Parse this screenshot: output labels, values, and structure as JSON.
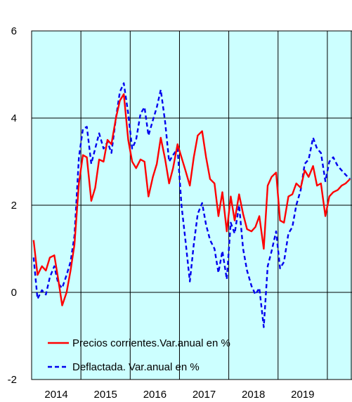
{
  "chart_data": {
    "type": "line",
    "title": "",
    "xlabel": "",
    "ylabel": "",
    "x_range": [
      2013.5,
      2020.0
    ],
    "ylim": [
      -2,
      6
    ],
    "y_ticks": [
      6,
      4,
      2,
      0,
      -2
    ],
    "x_tick_labels": [
      {
        "label": "2014",
        "center": 2014.0
      },
      {
        "label": "2015",
        "center": 2015.0
      },
      {
        "label": "2016",
        "center": 2016.0
      },
      {
        "label": "2017",
        "center": 2017.0
      },
      {
        "label": "2018",
        "center": 2018.0
      },
      {
        "label": "2019",
        "center": 2019.0
      }
    ],
    "year_boundaries": [
      2014.5,
      2015.5,
      2016.5,
      2017.5,
      2018.5,
      2019.5
    ],
    "grid": true,
    "plot_background": "#ccffff",
    "legend": {
      "position": "bottom-left"
    },
    "series": [
      {
        "name": "Precios corrientes.Var.anual en %",
        "color": "#ff0000",
        "dash": "solid",
        "x": [
          2013.54,
          2013.62,
          2013.71,
          2013.79,
          2013.87,
          2013.96,
          2014.04,
          2014.12,
          2014.21,
          2014.29,
          2014.37,
          2014.46,
          2014.54,
          2014.62,
          2014.71,
          2014.79,
          2014.87,
          2014.96,
          2015.04,
          2015.12,
          2015.21,
          2015.29,
          2015.37,
          2015.46,
          2015.54,
          2015.62,
          2015.71,
          2015.79,
          2015.87,
          2015.96,
          2016.04,
          2016.12,
          2016.21,
          2016.29,
          2016.37,
          2016.46,
          2016.54,
          2016.62,
          2016.71,
          2016.79,
          2016.87,
          2016.96,
          2017.04,
          2017.12,
          2017.21,
          2017.29,
          2017.37,
          2017.46,
          2017.54,
          2017.62,
          2017.71,
          2017.79,
          2017.87,
          2017.96,
          2018.04,
          2018.12,
          2018.21,
          2018.29,
          2018.37,
          2018.46,
          2018.54,
          2018.62,
          2018.71,
          2018.79,
          2018.87,
          2018.96,
          2019.04,
          2019.12,
          2019.21,
          2019.29,
          2019.37,
          2019.46,
          2019.54,
          2019.62,
          2019.71,
          2019.79,
          2019.87,
          2019.96
        ],
        "values": [
          1.2,
          0.4,
          0.6,
          0.5,
          0.8,
          0.85,
          0.3,
          -0.3,
          0.0,
          0.5,
          1.1,
          2.5,
          3.15,
          3.1,
          2.1,
          2.4,
          3.05,
          3.0,
          3.5,
          3.4,
          4.0,
          4.4,
          4.55,
          3.5,
          3.0,
          2.85,
          3.05,
          3.0,
          2.2,
          2.65,
          2.95,
          3.55,
          3.05,
          2.5,
          2.85,
          3.4,
          3.1,
          2.8,
          2.45,
          3.1,
          3.6,
          3.7,
          3.1,
          2.6,
          2.5,
          1.75,
          2.3,
          1.4,
          2.2,
          1.65,
          2.25,
          1.8,
          1.45,
          1.4,
          1.5,
          1.75,
          1.0,
          2.45,
          2.65,
          2.75,
          1.65,
          1.6,
          2.2,
          2.25,
          2.5,
          2.4,
          2.8,
          2.65,
          2.9,
          2.45,
          2.5,
          1.75,
          2.2,
          2.3,
          2.35,
          2.45,
          2.5,
          2.6
        ]
      },
      {
        "name": "Deflactada. Var.anual en %",
        "color": "#0000ee",
        "dash": "dashed",
        "x": [
          2013.54,
          2013.62,
          2013.71,
          2013.79,
          2013.87,
          2013.96,
          2014.04,
          2014.12,
          2014.21,
          2014.29,
          2014.37,
          2014.46,
          2014.54,
          2014.62,
          2014.71,
          2014.79,
          2014.87,
          2014.96,
          2015.04,
          2015.12,
          2015.21,
          2015.29,
          2015.37,
          2015.46,
          2015.54,
          2015.62,
          2015.71,
          2015.79,
          2015.87,
          2015.96,
          2016.04,
          2016.12,
          2016.21,
          2016.29,
          2016.37,
          2016.46,
          2016.54,
          2016.62,
          2016.71,
          2016.79,
          2016.87,
          2016.96,
          2017.04,
          2017.12,
          2017.21,
          2017.29,
          2017.37,
          2017.46,
          2017.54,
          2017.62,
          2017.71,
          2017.79,
          2017.87,
          2017.96,
          2018.04,
          2018.12,
          2018.21,
          2018.29,
          2018.37,
          2018.46,
          2018.54,
          2018.62,
          2018.71,
          2018.79,
          2018.87,
          2018.96,
          2019.04,
          2019.12,
          2019.21,
          2019.29,
          2019.37,
          2019.46,
          2019.54,
          2019.62,
          2019.71,
          2019.79,
          2019.87,
          2019.96
        ],
        "values": [
          0.8,
          -0.15,
          0.05,
          -0.05,
          0.35,
          0.6,
          0.2,
          0.1,
          0.4,
          0.7,
          1.3,
          3.1,
          3.75,
          3.8,
          2.95,
          3.3,
          3.65,
          3.3,
          3.45,
          3.2,
          4.0,
          4.6,
          4.8,
          4.1,
          3.3,
          3.5,
          4.1,
          4.25,
          3.6,
          3.95,
          4.25,
          4.65,
          3.9,
          3.0,
          3.15,
          3.3,
          2.0,
          1.2,
          0.25,
          1.1,
          1.8,
          2.05,
          1.55,
          1.2,
          1.0,
          0.45,
          0.95,
          0.3,
          1.6,
          1.35,
          2.0,
          1.0,
          0.5,
          0.15,
          -0.05,
          0.1,
          -0.8,
          0.6,
          0.95,
          1.4,
          0.55,
          0.7,
          1.35,
          1.5,
          2.0,
          2.35,
          2.95,
          3.05,
          3.55,
          3.3,
          3.2,
          2.55,
          3.0,
          3.1,
          2.9,
          2.8,
          2.7,
          2.6
        ]
      }
    ]
  }
}
